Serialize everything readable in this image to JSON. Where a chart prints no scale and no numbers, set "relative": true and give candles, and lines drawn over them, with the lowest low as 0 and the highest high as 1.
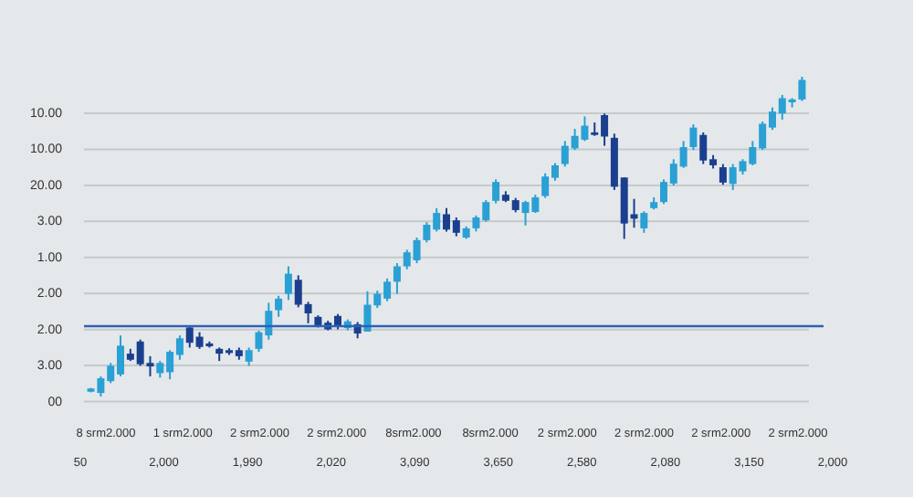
{
  "chart_data": {
    "type": "candlestick",
    "relative": true,
    "grid": "y",
    "categories": [
      null,
      null,
      null,
      null,
      null,
      null,
      null,
      null,
      null,
      null,
      null,
      null,
      null,
      null,
      null,
      null,
      null,
      null,
      null,
      null,
      null,
      null,
      null,
      null,
      null,
      null,
      null,
      null,
      null,
      null,
      null,
      null,
      null,
      null,
      null,
      null,
      null,
      null,
      null,
      null,
      null,
      null,
      null,
      null,
      null,
      null,
      null,
      null,
      null,
      null,
      null,
      null,
      null,
      null,
      null,
      null,
      null,
      null,
      null,
      null,
      null,
      null,
      null,
      null,
      null,
      null,
      null,
      null,
      null,
      null,
      null,
      null,
      null
    ],
    "ohlc": [
      [
        0.015,
        0.027,
        0.013,
        0.025
      ],
      [
        0.011,
        0.063,
        0,
        0.057
      ],
      [
        0.048,
        0.105,
        0.042,
        0.096
      ],
      [
        0.069,
        0.191,
        0.063,
        0.159
      ],
      [
        0.134,
        0.149,
        0.111,
        0.115
      ],
      [
        0.172,
        0.178,
        0.096,
        0.101
      ],
      [
        0.105,
        0.126,
        0.063,
        0.094
      ],
      [
        0.073,
        0.111,
        0.059,
        0.105
      ],
      [
        0.076,
        0.145,
        0.054,
        0.14
      ],
      [
        0.13,
        0.191,
        0.115,
        0.182
      ],
      [
        0.216,
        0.222,
        0.153,
        0.168
      ],
      [
        0.187,
        0.201,
        0.149,
        0.155
      ],
      [
        0.166,
        0.172,
        0.153,
        0.157
      ],
      [
        0.149,
        0.153,
        0.111,
        0.134
      ],
      [
        0.145,
        0.151,
        0.13,
        0.136
      ],
      [
        0.145,
        0.153,
        0.115,
        0.126
      ],
      [
        0.109,
        0.153,
        0.096,
        0.145
      ],
      [
        0.149,
        0.206,
        0.14,
        0.201
      ],
      [
        0.191,
        0.293,
        0.178,
        0.268
      ],
      [
        0.27,
        0.315,
        0.249,
        0.306
      ],
      [
        0.321,
        0.407,
        0.302,
        0.384
      ],
      [
        0.365,
        0.379,
        0.279,
        0.287
      ],
      [
        0.289,
        0.296,
        0.229,
        0.26
      ],
      [
        0.249,
        0.254,
        0.216,
        0.222
      ],
      [
        0.231,
        0.237,
        0.207,
        0.21
      ],
      [
        0.252,
        0.258,
        0.21,
        0.222
      ],
      [
        0.214,
        0.241,
        0.207,
        0.235
      ],
      [
        0.226,
        0.233,
        0.182,
        0.197
      ],
      [
        0.203,
        0.329,
        0.203,
        0.287
      ],
      [
        0.285,
        0.331,
        0.277,
        0.321
      ],
      [
        0.306,
        0.369,
        0.298,
        0.359
      ],
      [
        0.359,
        0.417,
        0.321,
        0.407
      ],
      [
        0.407,
        0.459,
        0.398,
        0.451
      ],
      [
        0.426,
        0.497,
        0.417,
        0.489
      ],
      [
        0.489,
        0.545,
        0.482,
        0.537
      ],
      [
        0.522,
        0.589,
        0.516,
        0.574
      ],
      [
        0.57,
        0.589,
        0.516,
        0.522
      ],
      [
        0.551,
        0.56,
        0.501,
        0.512
      ],
      [
        0.497,
        0.532,
        0.493,
        0.526
      ],
      [
        0.526,
        0.566,
        0.516,
        0.56
      ],
      [
        0.551,
        0.614,
        0.547,
        0.608
      ],
      [
        0.612,
        0.679,
        0.604,
        0.671
      ],
      [
        0.631,
        0.642,
        0.608,
        0.612
      ],
      [
        0.614,
        0.621,
        0.576,
        0.583
      ],
      [
        0.574,
        0.612,
        0.535,
        0.608
      ],
      [
        0.577,
        0.631,
        0.574,
        0.623
      ],
      [
        0.627,
        0.698,
        0.621,
        0.688
      ],
      [
        0.684,
        0.73,
        0.675,
        0.723
      ],
      [
        0.727,
        0.799,
        0.719,
        0.784
      ],
      [
        0.776,
        0.837,
        0.771,
        0.815
      ],
      [
        0.803,
        0.876,
        0.799,
        0.847
      ],
      [
        0.826,
        0.857,
        0.815,
        0.818
      ],
      [
        0.88,
        0.885,
        0.784,
        0.813
      ],
      [
        0.809,
        0.822,
        0.646,
        0.656
      ],
      [
        0.685,
        0.685,
        0.493,
        0.541
      ],
      [
        0.57,
        0.618,
        0.528,
        0.556
      ],
      [
        0.526,
        0.579,
        0.512,
        0.574
      ],
      [
        0.589,
        0.623,
        0.585,
        0.608
      ],
      [
        0.608,
        0.679,
        0.602,
        0.671
      ],
      [
        0.666,
        0.742,
        0.66,
        0.728
      ],
      [
        0.719,
        0.799,
        0.715,
        0.78
      ],
      [
        0.78,
        0.851,
        0.771,
        0.841
      ],
      [
        0.818,
        0.826,
        0.727,
        0.738
      ],
      [
        0.742,
        0.755,
        0.713,
        0.723
      ],
      [
        0.717,
        0.727,
        0.662,
        0.669
      ],
      [
        0.665,
        0.727,
        0.646,
        0.717
      ],
      [
        0.704,
        0.742,
        0.694,
        0.736
      ],
      [
        0.727,
        0.799,
        0.723,
        0.78
      ],
      [
        0.776,
        0.86,
        0.771,
        0.853
      ],
      [
        0.841,
        0.904,
        0.834,
        0.891
      ],
      [
        0.885,
        0.943,
        0.866,
        0.933
      ],
      [
        0.92,
        0.933,
        0.904,
        0.929
      ],
      [
        0.929,
        1.0,
        0.924,
        0.99
      ]
    ],
    "colors": [
      "#2aa0d4",
      "#2aa0d4",
      "#2aa0d4",
      "#2aa0d4",
      "#1b3f8e",
      "#1b3f8e",
      "#1b3f8e",
      "#2aa0d4",
      "#2aa0d4",
      "#2aa0d4",
      "#1b3f8e",
      "#1b3f8e",
      "#1b3f8e",
      "#1b3f8e",
      "#1b3f8e",
      "#1b3f8e",
      "#2aa0d4",
      "#2aa0d4",
      "#2aa0d4",
      "#2aa0d4",
      "#2aa0d4",
      "#1b3f8e",
      "#1b3f8e",
      "#1b3f8e",
      "#1b3f8e",
      "#1b3f8e",
      "#2aa0d4",
      "#1b3f8e",
      "#2aa0d4",
      "#2aa0d4",
      "#2aa0d4",
      "#2aa0d4",
      "#2aa0d4",
      "#2aa0d4",
      "#2aa0d4",
      "#2aa0d4",
      "#1b3f8e",
      "#1b3f8e",
      "#2aa0d4",
      "#2aa0d4",
      "#2aa0d4",
      "#2aa0d4",
      "#1b3f8e",
      "#1b3f8e",
      "#2aa0d4",
      "#2aa0d4",
      "#2aa0d4",
      "#2aa0d4",
      "#2aa0d4",
      "#2aa0d4",
      "#2aa0d4",
      "#1b3f8e",
      "#1b3f8e",
      "#1b3f8e",
      "#1b3f8e",
      "#1b3f8e",
      "#2aa0d4",
      "#2aa0d4",
      "#2aa0d4",
      "#2aa0d4",
      "#2aa0d4",
      "#2aa0d4",
      "#1b3f8e",
      "#1b3f8e",
      "#1b3f8e",
      "#2aa0d4",
      "#2aa0d4",
      "#2aa0d4",
      "#2aa0d4",
      "#2aa0d4",
      "#2aa0d4",
      "#2aa0d4",
      "#2aa0d4"
    ],
    "ref_lines": [
      {
        "axis": "y",
        "value": 0.22,
        "color": "#2d62b6"
      }
    ],
    "annotations": [
      "10.00",
      "10.00",
      "20.00",
      "3.00",
      "1.00",
      "2.00",
      "2.00",
      "3.00",
      "00",
      "8 srm2.000",
      "1 srm2.000",
      "2 srm2.000",
      "2 srm2.000",
      "8srm2.000",
      "8srm2.000",
      "2 srm2.000",
      "2 srm2.000",
      "2 srm2.000",
      "2 srm2.000",
      "50",
      "2,000",
      "1,990",
      "2,020",
      "3,090",
      "3,650",
      "2,580",
      "2,080",
      "3,150",
      "2,000"
    ]
  }
}
